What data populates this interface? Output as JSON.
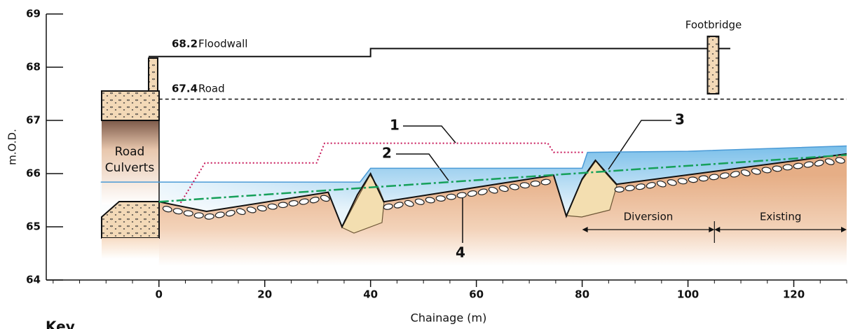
{
  "chart_data": {
    "type": "profile",
    "xlabel": "Chainage (m)",
    "ylabel": "m.O.D.",
    "key_heading": "Key",
    "xlim": [
      -21.3,
      130
    ],
    "ylim": [
      64,
      69
    ],
    "xticks": [
      0,
      20,
      40,
      60,
      80,
      100,
      120
    ],
    "xminorticks": [
      -20,
      -15,
      -10,
      -5,
      5,
      10,
      15,
      25,
      30,
      35,
      45,
      50,
      55,
      65,
      70,
      75,
      85,
      90,
      95,
      105,
      110,
      115,
      125,
      130
    ],
    "yticks": [
      64,
      65,
      66,
      67,
      68,
      69
    ],
    "floodwall": {
      "x": [
        0,
        40,
        40,
        108
      ],
      "values": [
        68.2,
        68.2,
        68.35,
        68.35
      ],
      "color": "#111"
    },
    "road": {
      "x": [
        0,
        130
      ],
      "values": [
        67.4,
        67.4
      ],
      "color": "#111"
    },
    "line_1": {
      "x": [
        4.1,
        8.7,
        29.8,
        31.3,
        73.5,
        74.6,
        80.5
      ],
      "values": [
        65.45,
        66.2,
        66.2,
        66.57,
        66.57,
        66.4,
        66.4
      ],
      "color": "#c8185a"
    },
    "line_2": {
      "x": [
        0,
        130
      ],
      "values": [
        65.47,
        66.35
      ],
      "color": "#16a05a"
    },
    "water": {
      "x": [
        -11,
        38,
        40,
        80,
        81,
        100,
        130
      ],
      "values": [
        65.84,
        65.84,
        66.1,
        66.1,
        66.4,
        66.42,
        66.52
      ],
      "color": "#4a9ad6"
    },
    "bed": {
      "x": [
        0,
        9,
        32,
        34.6,
        37.5,
        40,
        42.5,
        74.6,
        77,
        80,
        82.5,
        86.5,
        130
      ],
      "values": [
        65.47,
        65.29,
        65.65,
        65.0,
        65.6,
        66.0,
        65.47,
        65.97,
        65.2,
        65.9,
        66.25,
        65.8,
        66.37
      ],
      "color": "#111"
    },
    "footbridge": {
      "x": [
        103.7,
        105.8
      ],
      "values": [
        67.5,
        68.58
      ]
    },
    "reaches": [
      {
        "label": "Diversion",
        "x": [
          80,
          105
        ]
      },
      {
        "label": "Existing",
        "x": [
          105,
          130
        ]
      }
    ],
    "annotations": [
      "68.2",
      "Floodwall",
      "67.4",
      "Road",
      "Footbridge",
      "Road",
      "Culverts",
      "1",
      "2",
      "3",
      "4"
    ]
  }
}
